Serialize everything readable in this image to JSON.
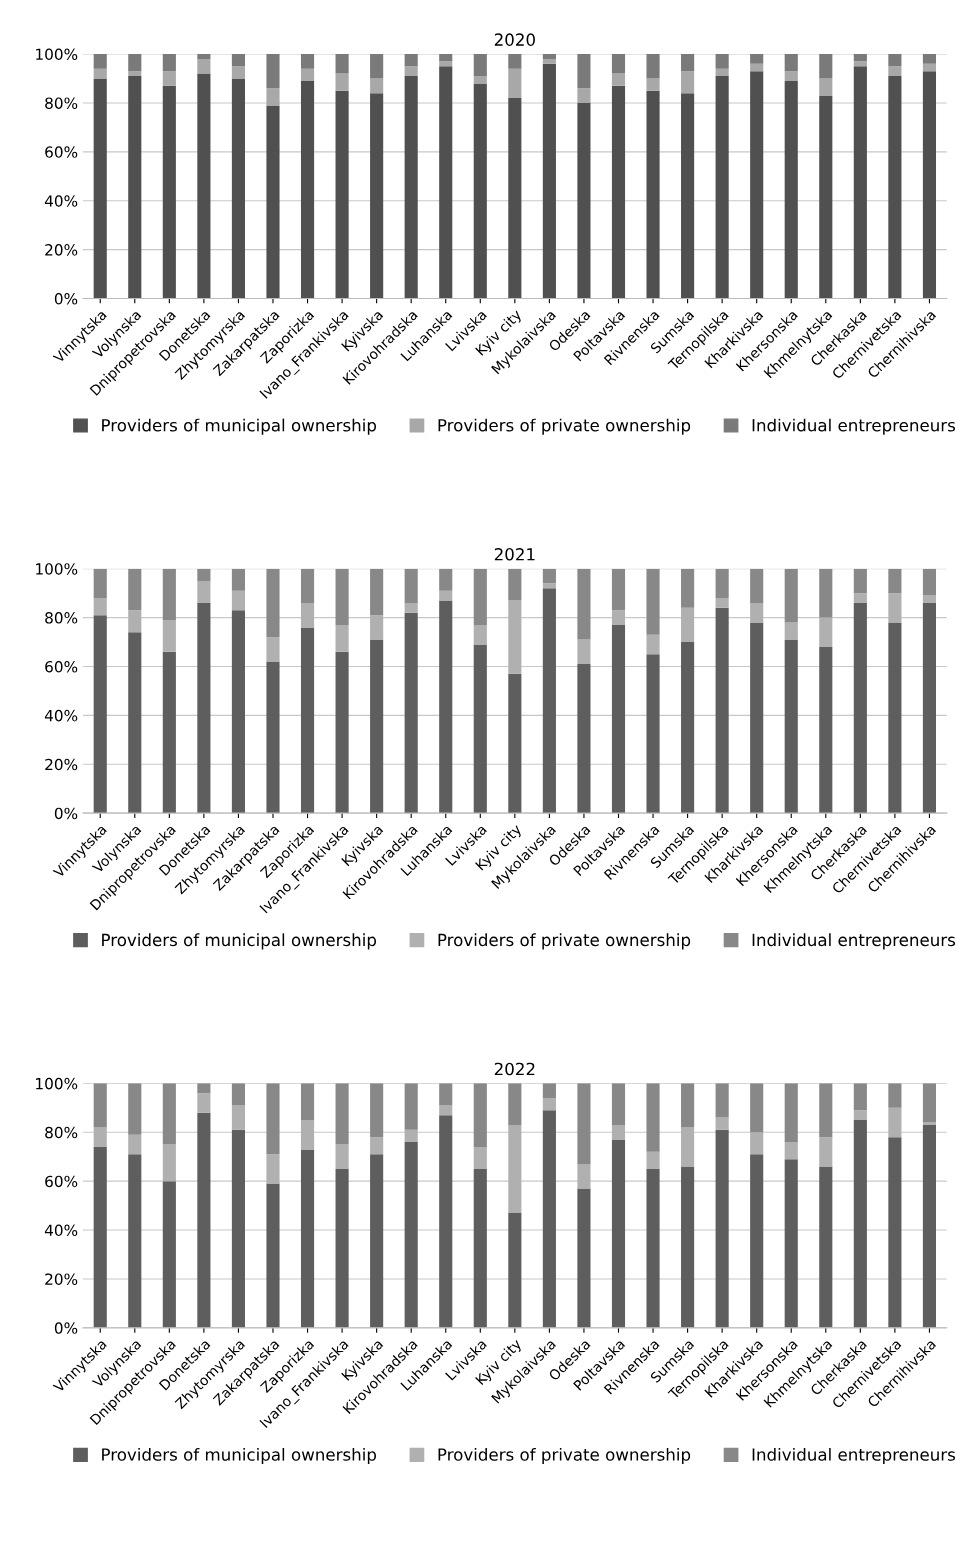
{
  "chart_data": [
    {
      "type": "bar",
      "title": "2020",
      "stacked": true,
      "legend": "bottom",
      "grid": "y",
      "ylim": [
        0,
        100
      ],
      "yticks": [
        {
          "value": 0,
          "label": "0%"
        },
        {
          "value": 20,
          "label": "20%"
        },
        {
          "value": 40,
          "label": "40%"
        },
        {
          "value": 60,
          "label": "60%"
        },
        {
          "value": 80,
          "label": "80%"
        },
        {
          "value": 100,
          "label": "100%"
        }
      ],
      "categories": [
        "Vinnytska",
        "Volynska",
        "Dnipropetrovska",
        "Donetska",
        "Zhytomyrska",
        "Zakarpatska",
        "Zaporizka",
        "Ivano_Frankivska",
        "Kyivska",
        "Kirovohradska",
        "Luhanska",
        "Lvivska",
        "Kyiv city",
        "Mykolaivska",
        "Odeska",
        "Poltavska",
        "Rivnenska",
        "Sumska",
        "Ternopilska",
        "Kharkivska",
        "Khersonska",
        "Khmelnytska",
        "Cherkaska",
        "Chernivetska",
        "Chernihivska"
      ],
      "series": [
        {
          "name": "Providers of municipal ownership",
          "color": "#505050",
          "values": [
            90,
            91,
            87,
            92,
            90,
            79,
            89,
            85,
            84,
            91,
            95,
            88,
            82,
            96,
            80,
            87,
            85,
            84,
            91,
            93,
            89,
            83,
            95,
            91,
            93
          ]
        },
        {
          "name": "Providers of private ownership",
          "color": "#a8a8a8",
          "values": [
            4,
            2,
            6,
            6,
            5,
            7,
            5,
            7,
            6,
            4,
            2,
            3,
            12,
            2,
            6,
            5,
            5,
            9,
            3,
            3,
            4,
            7,
            2,
            4,
            3
          ]
        },
        {
          "name": "Individual entrepreneurs",
          "color": "#7a7a7a",
          "values": [
            6,
            7,
            7,
            2,
            5,
            14,
            6,
            8,
            10,
            5,
            3,
            9,
            6,
            2,
            14,
            8,
            10,
            7,
            6,
            4,
            7,
            10,
            3,
            5,
            4
          ]
        }
      ]
    },
    {
      "type": "bar",
      "title": "2021",
      "stacked": true,
      "legend": "bottom",
      "grid": "y",
      "ylim": [
        0,
        100
      ],
      "yticks": [
        {
          "value": 0,
          "label": "0%"
        },
        {
          "value": 20,
          "label": "20%"
        },
        {
          "value": 40,
          "label": "40%"
        },
        {
          "value": 60,
          "label": "60%"
        },
        {
          "value": 80,
          "label": "80%"
        },
        {
          "value": 100,
          "label": "100%"
        }
      ],
      "categories": [
        "Vinnytska",
        "Volynska",
        "Dnipropetrovska",
        "Donetska",
        "Zhytomyrska",
        "Zakarpatska",
        "Zaporizka",
        "Ivano_Frankivska",
        "Kyivska",
        "Kirovohradska",
        "Luhanska",
        "Lvivska",
        "Kyiv city",
        "Mykolaivska",
        "Odeska",
        "Poltavska",
        "Rivnenska",
        "Sumska",
        "Ternopilska",
        "Kharkivska",
        "Khersonska",
        "Khmelnytska",
        "Cherkaska",
        "Chernivetska",
        "Chernihivska"
      ],
      "series": [
        {
          "name": "Providers of municipal ownership",
          "color": "#5e5e5e",
          "values": [
            81,
            74,
            66,
            86,
            83,
            62,
            76,
            66,
            71,
            82,
            87,
            69,
            57,
            92,
            61,
            77,
            65,
            70,
            84,
            78,
            71,
            68,
            86,
            78,
            86
          ]
        },
        {
          "name": "Providers of private ownership",
          "color": "#b0b0b0",
          "values": [
            7,
            9,
            13,
            9,
            8,
            10,
            10,
            11,
            10,
            4,
            4,
            8,
            30,
            2,
            10,
            6,
            8,
            14,
            4,
            8,
            7,
            12,
            4,
            12,
            3
          ]
        },
        {
          "name": "Individual entrepreneurs",
          "color": "#888888",
          "values": [
            12,
            17,
            21,
            5,
            9,
            28,
            14,
            23,
            19,
            14,
            9,
            23,
            13,
            6,
            29,
            17,
            27,
            16,
            12,
            14,
            22,
            20,
            10,
            10,
            11
          ]
        }
      ]
    },
    {
      "type": "bar",
      "title": "2022",
      "stacked": true,
      "legend": "bottom",
      "grid": "y",
      "ylim": [
        0,
        100
      ],
      "yticks": [
        {
          "value": 0,
          "label": "0%"
        },
        {
          "value": 20,
          "label": "20%"
        },
        {
          "value": 40,
          "label": "40%"
        },
        {
          "value": 60,
          "label": "60%"
        },
        {
          "value": 80,
          "label": "80%"
        },
        {
          "value": 100,
          "label": "100%"
        }
      ],
      "categories": [
        "Vinnytska",
        "Volynska",
        "Dnipropetrovska",
        "Donetska",
        "Zhytomyrska",
        "Zakarpatska",
        "Zaporizka",
        "Ivano_Frankivska",
        "Kyivska",
        "Kirovohradska",
        "Luhanska",
        "Lvivska",
        "Kyiv city",
        "Mykolaivska",
        "Odeska",
        "Poltavska",
        "Rivnenska",
        "Sumska",
        "Ternopilska",
        "Kharkivska",
        "Khersonska",
        "Khmelnytska",
        "Cherkaska",
        "Chernivetska",
        "Chernihivska"
      ],
      "series": [
        {
          "name": "Providers of municipal ownership",
          "color": "#5e5e5e",
          "values": [
            74,
            71,
            60,
            88,
            81,
            59,
            73,
            65,
            71,
            76,
            87,
            65,
            47,
            89,
            57,
            77,
            65,
            66,
            81,
            71,
            69,
            66,
            85,
            78,
            83
          ]
        },
        {
          "name": "Providers of private ownership",
          "color": "#b0b0b0",
          "values": [
            8,
            8,
            15,
            8,
            10,
            12,
            12,
            10,
            7,
            5,
            4,
            9,
            36,
            5,
            10,
            6,
            7,
            16,
            5,
            9,
            7,
            12,
            4,
            12,
            1
          ]
        },
        {
          "name": "Individual entrepreneurs",
          "color": "#888888",
          "values": [
            18,
            21,
            25,
            4,
            9,
            29,
            15,
            25,
            22,
            19,
            9,
            26,
            17,
            6,
            33,
            17,
            28,
            18,
            14,
            20,
            24,
            22,
            11,
            10,
            16
          ]
        }
      ]
    }
  ]
}
